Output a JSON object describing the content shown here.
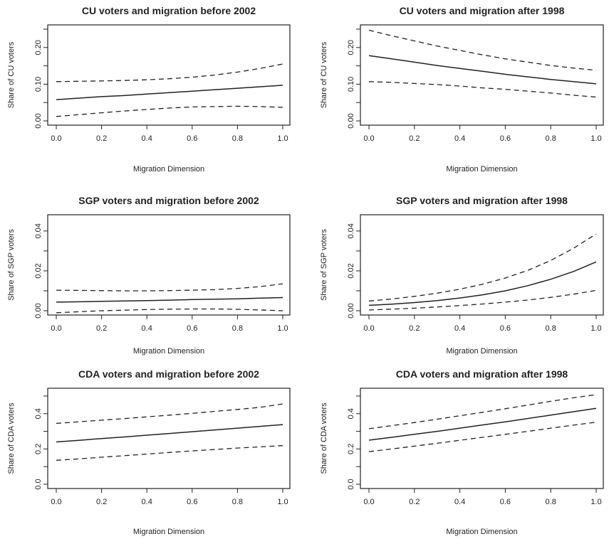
{
  "chart_data": [
    {
      "type": "line",
      "title": "CU voters and migration before 2002",
      "xlabel": "Migration Dimension",
      "ylabel": "Share of CU voters",
      "xlim": [
        0,
        1
      ],
      "ylim": [
        0,
        0.25
      ],
      "x_ticks": [
        "0.0",
        "0.2",
        "0.4",
        "0.6",
        "0.8",
        "1.0"
      ],
      "y_ticks": [
        "0.00",
        "0.10",
        "0.20"
      ],
      "x": [
        0,
        0.1,
        0.2,
        0.3,
        0.4,
        0.5,
        0.6,
        0.7,
        0.8,
        0.9,
        1.0
      ],
      "series": [
        {
          "style": "solid",
          "values": [
            0.058,
            0.062,
            0.066,
            0.069,
            0.073,
            0.077,
            0.081,
            0.085,
            0.089,
            0.093,
            0.097
          ]
        },
        {
          "style": "dashed",
          "values": [
            0.107,
            0.108,
            0.109,
            0.11,
            0.112,
            0.115,
            0.119,
            0.125,
            0.133,
            0.143,
            0.155
          ]
        },
        {
          "style": "dashed",
          "values": [
            0.012,
            0.017,
            0.022,
            0.027,
            0.031,
            0.035,
            0.038,
            0.039,
            0.04,
            0.039,
            0.037
          ]
        }
      ]
    },
    {
      "type": "line",
      "title": "CU voters and migration after 1998",
      "xlabel": "Migration Dimension",
      "ylabel": "Share of CU voters",
      "xlim": [
        0,
        1
      ],
      "ylim": [
        0,
        0.25
      ],
      "x_ticks": [
        "0.0",
        "0.2",
        "0.4",
        "0.6",
        "0.8",
        "1.0"
      ],
      "y_ticks": [
        "0.00",
        "0.10",
        "0.20"
      ],
      "x": [
        0,
        0.1,
        0.2,
        0.3,
        0.4,
        0.5,
        0.6,
        0.7,
        0.8,
        0.9,
        1.0
      ],
      "series": [
        {
          "style": "solid",
          "values": [
            0.178,
            0.169,
            0.16,
            0.151,
            0.143,
            0.135,
            0.127,
            0.12,
            0.113,
            0.107,
            0.101
          ]
        },
        {
          "style": "dashed",
          "values": [
            0.247,
            0.232,
            0.218,
            0.204,
            0.192,
            0.18,
            0.169,
            0.16,
            0.151,
            0.144,
            0.138
          ]
        },
        {
          "style": "dashed",
          "values": [
            0.107,
            0.105,
            0.102,
            0.099,
            0.095,
            0.09,
            0.086,
            0.081,
            0.076,
            0.07,
            0.065
          ]
        }
      ]
    },
    {
      "type": "line",
      "title": "SGP voters and migration before 2002",
      "xlabel": "Migration Dimension",
      "ylabel": "Share of SGP voters",
      "xlim": [
        0,
        1
      ],
      "ylim": [
        0,
        0.046
      ],
      "x_ticks": [
        "0.0",
        "0.2",
        "0.4",
        "0.6",
        "0.8",
        "1.0"
      ],
      "y_ticks": [
        "0.00",
        "0.02",
        "0.04"
      ],
      "x": [
        0,
        0.1,
        0.2,
        0.3,
        0.4,
        0.5,
        0.6,
        0.7,
        0.8,
        0.9,
        1.0
      ],
      "series": [
        {
          "style": "solid",
          "values": [
            0.0043,
            0.0045,
            0.0047,
            0.0049,
            0.0051,
            0.0053,
            0.0056,
            0.0058,
            0.006,
            0.0063,
            0.0066
          ]
        },
        {
          "style": "dashed",
          "values": [
            0.0103,
            0.0102,
            0.0101,
            0.01,
            0.01,
            0.0101,
            0.0103,
            0.0106,
            0.0112,
            0.0121,
            0.0135
          ]
        },
        {
          "style": "dashed",
          "values": [
            -0.001,
            -0.0005,
            0.0,
            0.0003,
            0.0006,
            0.0008,
            0.0009,
            0.0009,
            0.0007,
            0.0004,
            0.0
          ]
        }
      ]
    },
    {
      "type": "line",
      "title": "SGP voters and migration after 1998",
      "xlabel": "Migration Dimension",
      "ylabel": "Share of SGP voters",
      "xlim": [
        0,
        1
      ],
      "ylim": [
        0,
        0.046
      ],
      "x_ticks": [
        "0.0",
        "0.2",
        "0.4",
        "0.6",
        "0.8",
        "1.0"
      ],
      "y_ticks": [
        "0.00",
        "0.02",
        "0.04"
      ],
      "x": [
        0,
        0.1,
        0.2,
        0.3,
        0.4,
        0.5,
        0.6,
        0.7,
        0.8,
        0.9,
        1.0
      ],
      "series": [
        {
          "style": "solid",
          "values": [
            0.0027,
            0.0033,
            0.0041,
            0.0051,
            0.0064,
            0.008,
            0.01,
            0.0126,
            0.0158,
            0.0197,
            0.0245
          ]
        },
        {
          "style": "dashed",
          "values": [
            0.0049,
            0.0059,
            0.0072,
            0.0088,
            0.0108,
            0.0133,
            0.0164,
            0.0203,
            0.0252,
            0.0313,
            0.0385
          ]
        },
        {
          "style": "dashed",
          "values": [
            0.0004,
            0.0008,
            0.0013,
            0.0019,
            0.0026,
            0.0034,
            0.0043,
            0.0054,
            0.0067,
            0.0083,
            0.0102
          ]
        }
      ]
    },
    {
      "type": "line",
      "title": "CDA voters and migration before 2002",
      "xlabel": "Migration Dimension",
      "ylabel": "Share of CDA voters",
      "xlim": [
        0,
        1
      ],
      "ylim": [
        0,
        0.52
      ],
      "x_ticks": [
        "0.0",
        "0.2",
        "0.4",
        "0.6",
        "0.8",
        "1.0"
      ],
      "y_ticks": [
        "0.0",
        "0.2",
        "0.4"
      ],
      "x": [
        0,
        0.1,
        0.2,
        0.3,
        0.4,
        0.5,
        0.6,
        0.7,
        0.8,
        0.9,
        1.0
      ],
      "series": [
        {
          "style": "solid",
          "values": [
            0.24,
            0.249,
            0.259,
            0.268,
            0.278,
            0.288,
            0.298,
            0.308,
            0.318,
            0.328,
            0.338
          ]
        },
        {
          "style": "dashed",
          "values": [
            0.345,
            0.354,
            0.363,
            0.372,
            0.382,
            0.392,
            0.402,
            0.413,
            0.424,
            0.436,
            0.455
          ]
        },
        {
          "style": "dashed",
          "values": [
            0.136,
            0.144,
            0.153,
            0.162,
            0.171,
            0.18,
            0.189,
            0.197,
            0.205,
            0.212,
            0.219
          ]
        }
      ]
    },
    {
      "type": "line",
      "title": "CDA voters and migration after 1998",
      "xlabel": "Migration Dimension",
      "ylabel": "Share of CDA voters",
      "xlim": [
        0,
        1
      ],
      "ylim": [
        0,
        0.52
      ],
      "x_ticks": [
        "0.0",
        "0.2",
        "0.4",
        "0.6",
        "0.8",
        "1.0"
      ],
      "y_ticks": [
        "0.0",
        "0.2",
        "0.4"
      ],
      "x": [
        0,
        0.1,
        0.2,
        0.3,
        0.4,
        0.5,
        0.6,
        0.7,
        0.8,
        0.9,
        1.0
      ],
      "series": [
        {
          "style": "solid",
          "values": [
            0.25,
            0.266,
            0.283,
            0.3,
            0.318,
            0.336,
            0.354,
            0.373,
            0.392,
            0.411,
            0.43
          ]
        },
        {
          "style": "dashed",
          "values": [
            0.315,
            0.332,
            0.35,
            0.369,
            0.388,
            0.408,
            0.428,
            0.449,
            0.47,
            0.49,
            0.508
          ]
        },
        {
          "style": "dashed",
          "values": [
            0.185,
            0.2,
            0.216,
            0.232,
            0.249,
            0.266,
            0.283,
            0.3,
            0.318,
            0.335,
            0.352
          ]
        }
      ]
    }
  ]
}
